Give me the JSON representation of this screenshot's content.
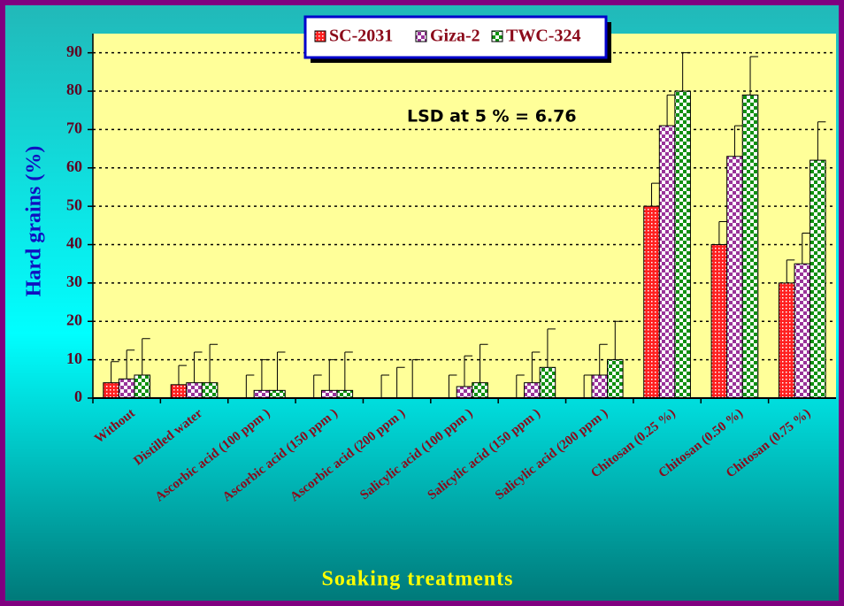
{
  "chart_data": {
    "type": "bar",
    "y_label": "Hard grains (%)",
    "x_label": "Soaking treatments",
    "annotation": "LSD at 5 % = 6.76",
    "categories": [
      "Without",
      "Distilled water",
      "Ascorbic acid  (100  ppm )",
      "Ascorbic acid  (150  ppm )",
      "Ascorbic acid  (200  ppm )",
      "Salicylic acid  (100  ppm )",
      "Salicylic acid  (150  ppm )",
      "Salicylic acid  (200  ppm )",
      "Chitosan  (0.25 %)",
      "Chitosan  (0.50 %)",
      "Chitosan  (0.75 %)"
    ],
    "series": [
      {
        "name": "SC-2031",
        "color": "#ff2020",
        "values": [
          4,
          3.5,
          0,
          0,
          0,
          0,
          0,
          0,
          50,
          40,
          30
        ],
        "errors": [
          5.5,
          5,
          6,
          6,
          6,
          6,
          6,
          6,
          6,
          6,
          6
        ]
      },
      {
        "name": "Giza-2",
        "color": "#993399",
        "values": [
          5,
          4,
          2,
          2,
          0,
          3,
          4,
          6,
          71,
          63,
          35
        ],
        "errors": [
          7.5,
          8,
          8,
          8,
          8,
          8,
          8,
          8,
          8,
          8,
          8
        ]
      },
      {
        "name": "TWC-324",
        "color": "#109010",
        "values": [
          6,
          4,
          2,
          2,
          0,
          4,
          8,
          10,
          80,
          79,
          62
        ],
        "errors": [
          9.5,
          10,
          10,
          10,
          10,
          10,
          10,
          10,
          10,
          10,
          10
        ]
      }
    ],
    "ylim": [
      0,
      95
    ],
    "yticks": [
      0,
      10,
      20,
      30,
      40,
      50,
      60,
      70,
      80,
      90
    ],
    "grid": true
  }
}
